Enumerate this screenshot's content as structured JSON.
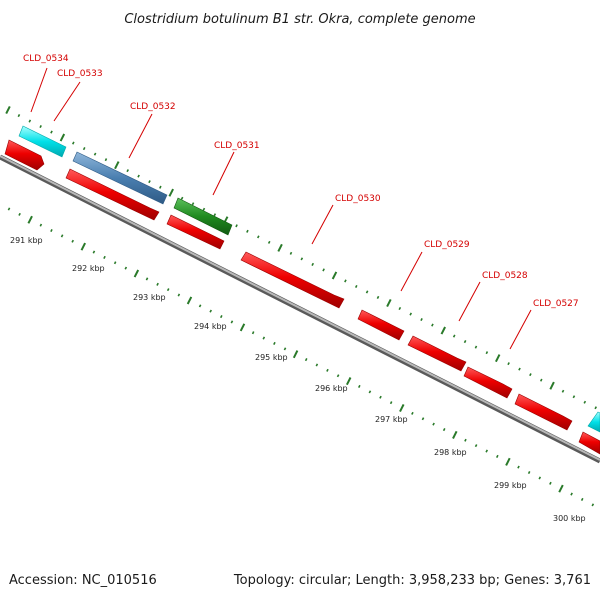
{
  "title": "Clostridium botulinum B1 str. Okra, complete genome",
  "accession": "Accession: NC_010516",
  "summary": "Topology: circular; Length: 3,958,233 bp; Genes: 3,761",
  "colors": {
    "cds_red": "#ee0000",
    "cyan": "#00e0e8",
    "steel_blue": "#4a7fb0",
    "green": "#1f8a1f",
    "backbone": "#8a8a8a",
    "tick_green": "#2a7a2a",
    "label_red": "#d40000"
  },
  "tick_labels": [
    "291 kbp",
    "292 kbp",
    "293 kbp",
    "294 kbp",
    "295 kbp",
    "296 kbp",
    "297 kbp",
    "298 kbp",
    "299 kbp",
    "300 kbp"
  ],
  "gene_labels": [
    "CLD_0534",
    "CLD_0533",
    "CLD_0532",
    "CLD_0531",
    "CLD_0530",
    "CLD_0529",
    "CLD_0528",
    "CLD_0527"
  ]
}
